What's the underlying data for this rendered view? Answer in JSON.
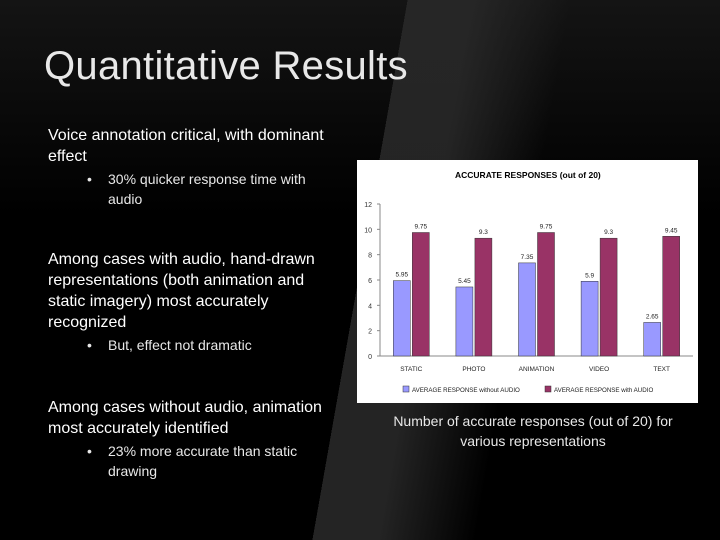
{
  "slide": {
    "title": "Quantitative Results",
    "caption": "Number of accurate responses (out of 20) for various representations"
  },
  "bullets": [
    {
      "text": "Voice annotation critical, with dominant effect",
      "sub": "30% quicker response time with audio"
    },
    {
      "text": "Among cases with audio, hand-drawn representations (both animation and static imagery) most accurately recognized",
      "sub": "But, effect not dramatic"
    },
    {
      "text": "Among cases without audio, animation most accurately identified",
      "sub": "23% more accurate than static drawing"
    }
  ],
  "bullet_glyph": "•",
  "chart_data": {
    "type": "bar",
    "title": "ACCURATE RESPONSES (out of 20)",
    "categories": [
      "STATIC",
      "PHOTO",
      "ANIMATION",
      "VIDEO",
      "TEXT"
    ],
    "series": [
      {
        "name": "AVERAGE RESPONSE without AUDIO",
        "values": [
          5.95,
          5.45,
          7.35,
          5.9,
          2.65
        ],
        "labels": [
          "5.95",
          "5.45",
          "7.35",
          "5.9",
          "2.65"
        ],
        "color": "#9999ff"
      },
      {
        "name": "AVERAGE RESPONSE with AUDIO",
        "values": [
          9.75,
          9.3,
          9.75,
          9.3,
          9.45
        ],
        "labels": [
          "9.75",
          "9.3",
          "9.75",
          "9.3",
          "9.45"
        ],
        "color": "#993366"
      }
    ],
    "ylim": [
      0,
      12
    ],
    "yticks": [
      "0",
      "2",
      "4",
      "6",
      "8",
      "10",
      "12"
    ],
    "grid": false,
    "legend": "bottom"
  }
}
